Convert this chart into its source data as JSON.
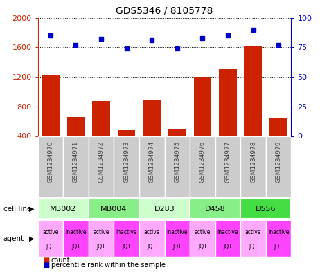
{
  "title": "GDS5346 / 8105778",
  "samples": [
    "GSM1234970",
    "GSM1234971",
    "GSM1234972",
    "GSM1234973",
    "GSM1234974",
    "GSM1234975",
    "GSM1234976",
    "GSM1234977",
    "GSM1234978",
    "GSM1234979"
  ],
  "counts": [
    1230,
    660,
    870,
    480,
    880,
    490,
    1200,
    1310,
    1620,
    640
  ],
  "percentiles": [
    85,
    77,
    82,
    74,
    81,
    74,
    83,
    85,
    90,
    77
  ],
  "ylim_left": [
    400,
    2000
  ],
  "ylim_right": [
    0,
    100
  ],
  "yticks_left": [
    400,
    800,
    1200,
    1600,
    2000
  ],
  "yticks_right": [
    0,
    25,
    50,
    75,
    100
  ],
  "cell_lines": [
    {
      "label": "MB002",
      "cols": [
        0,
        1
      ],
      "color": "#ccffcc"
    },
    {
      "label": "MB004",
      "cols": [
        2,
        3
      ],
      "color": "#88ee88"
    },
    {
      "label": "D283",
      "cols": [
        4,
        5
      ],
      "color": "#ccffcc"
    },
    {
      "label": "D458",
      "cols": [
        6,
        7
      ],
      "color": "#88ee88"
    },
    {
      "label": "D556",
      "cols": [
        8,
        9
      ],
      "color": "#44dd44"
    }
  ],
  "agents": [
    {
      "label": "active\nJQ1",
      "color": "#ffaaff"
    },
    {
      "label": "inactive\nJQ1",
      "color": "#ff44ff"
    },
    {
      "label": "active\nJQ1",
      "color": "#ffaaff"
    },
    {
      "label": "inactive\nJQ1",
      "color": "#ff44ff"
    },
    {
      "label": "active\nJQ1",
      "color": "#ffaaff"
    },
    {
      "label": "inactive\nJQ1",
      "color": "#ff44ff"
    },
    {
      "label": "active\nJQ1",
      "color": "#ffaaff"
    },
    {
      "label": "inactive\nJQ1",
      "color": "#ff44ff"
    },
    {
      "label": "active\nJQ1",
      "color": "#ffaaff"
    },
    {
      "label": "inactive\nJQ1",
      "color": "#ff44ff"
    }
  ],
  "bar_color": "#cc2200",
  "dot_color": "#0000cc",
  "tick_color_left": "#cc2200",
  "tick_color_right": "#0000cc",
  "legend_count_color": "#cc2200",
  "legend_pct_color": "#0000cc",
  "sample_box_color": "#cccccc",
  "sample_text_color": "#444444",
  "fig_width": 4.75,
  "fig_height": 3.93,
  "dpi": 100
}
